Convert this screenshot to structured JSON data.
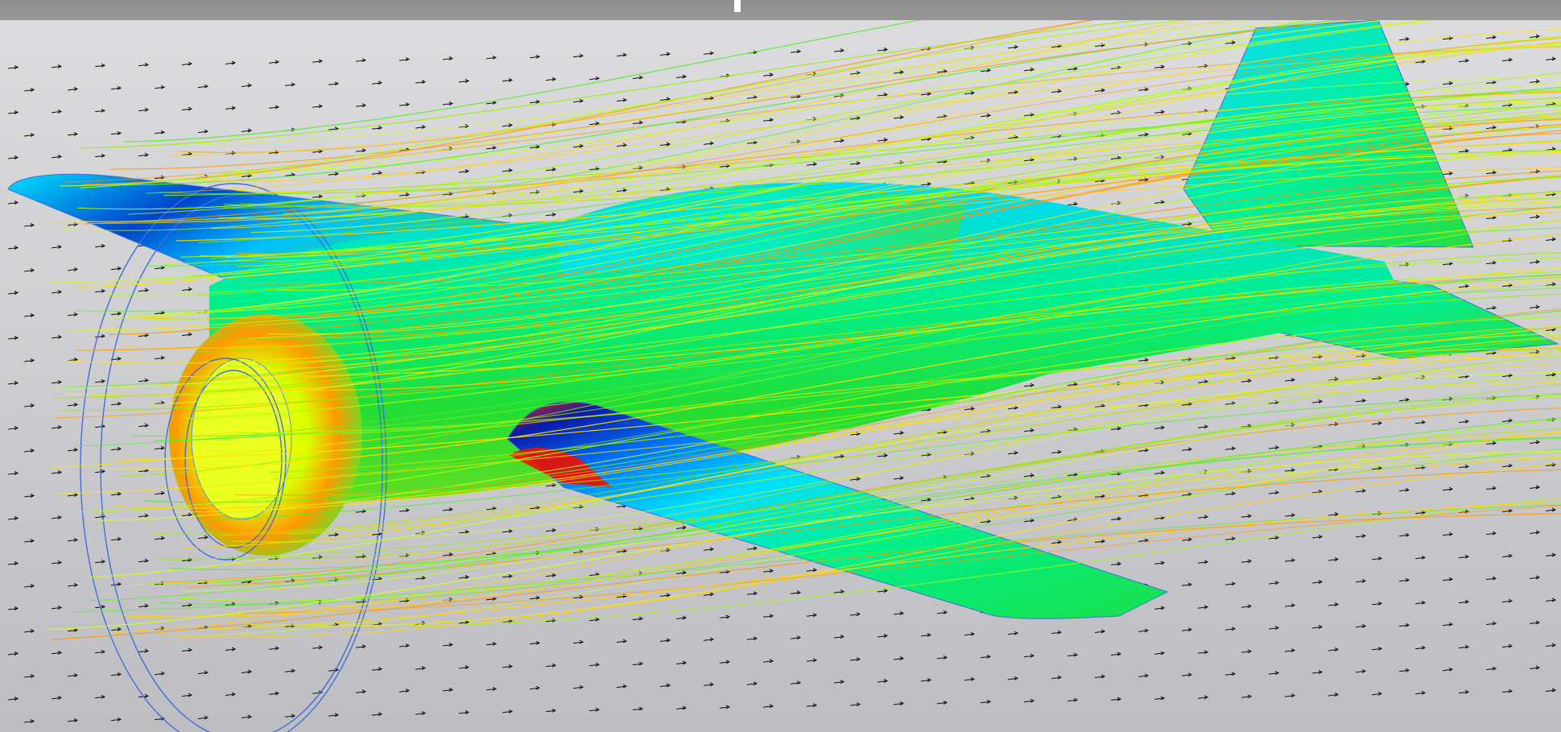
{
  "app": {
    "view_mode": "flow-trajectories",
    "model": "aircraft"
  },
  "viewport": {
    "background_top": "#dcdcde",
    "background_bottom": "#bdbdc2"
  },
  "colors": {
    "scale": [
      "#0a1aa8",
      "#0066ff",
      "#00e0ff",
      "#00e05a",
      "#aaff00",
      "#ffe600",
      "#ff8800",
      "#ee1100"
    ],
    "outline": "#3f6fd6",
    "vector": "#111111"
  }
}
